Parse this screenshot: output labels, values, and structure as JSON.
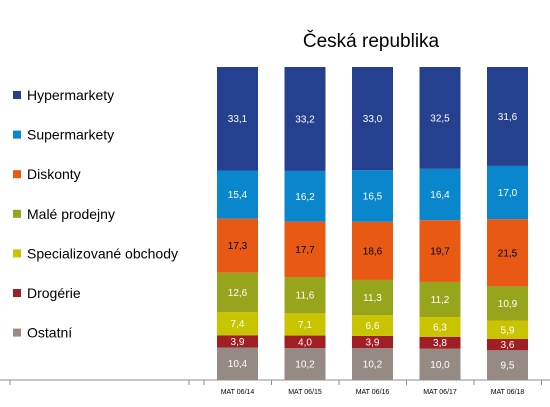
{
  "chart_data": {
    "type": "bar",
    "stacked": true,
    "normalized": true,
    "title": "Česká republika",
    "categories": [
      "MAT 06/14",
      "MAT 06/15",
      "MAT 06/16",
      "MAT 06/17",
      "MAT 06/18"
    ],
    "legend_position": "left",
    "series": [
      {
        "name": "Ostatní",
        "color": "#958a84",
        "label_color": "#ffffff",
        "values": [
          10.4,
          10.2,
          10.2,
          10.0,
          9.5
        ],
        "labels": [
          "10,4",
          "10,2",
          "10,2",
          "10,0",
          "9,5"
        ]
      },
      {
        "name": "Drogérie",
        "color": "#a01e26",
        "label_color": "#ffffff",
        "values": [
          3.9,
          4.0,
          3.9,
          3.8,
          3.6
        ],
        "labels": [
          "3,9",
          "4,0",
          "3,9",
          "3,8",
          "3,6"
        ]
      },
      {
        "name": "Specializované obchody",
        "color": "#c9c400",
        "label_color": "#ffffff",
        "values": [
          7.4,
          7.1,
          6.6,
          6.3,
          5.9
        ],
        "labels": [
          "7,4",
          "7,1",
          "6,6",
          "6,3",
          "5,9"
        ]
      },
      {
        "name": "Malé prodejny",
        "color": "#96a51b",
        "label_color": "#ffffff",
        "values": [
          12.6,
          11.6,
          11.3,
          11.2,
          10.9
        ],
        "labels": [
          "12,6",
          "11,6",
          "11,3",
          "11,2",
          "10,9"
        ]
      },
      {
        "name": "Diskonty",
        "color": "#e85a14",
        "label_color": "#000000",
        "values": [
          17.3,
          17.7,
          18.6,
          19.7,
          21.5
        ],
        "labels": [
          "17,3",
          "17,7",
          "18,6",
          "19,7",
          "21,5"
        ]
      },
      {
        "name": "Supermarkety",
        "color": "#0a86cc",
        "label_color": "#ffffff",
        "values": [
          15.4,
          16.2,
          16.5,
          16.4,
          17.0
        ],
        "labels": [
          "15,4",
          "16,2",
          "16,5",
          "16,4",
          "17,0"
        ]
      },
      {
        "name": "Hypermarkety",
        "color": "#24408f",
        "label_color": "#ffffff",
        "values": [
          33.1,
          33.2,
          33.0,
          32.5,
          31.6
        ],
        "labels": [
          "33,1",
          "33,2",
          "33,0",
          "32,5",
          "31,6"
        ]
      }
    ],
    "legend_order": [
      "Hypermarkety",
      "Supermarkety",
      "Diskonty",
      "Malé prodejny",
      "Specializované obchody",
      "Drogérie",
      "Ostatní"
    ]
  }
}
